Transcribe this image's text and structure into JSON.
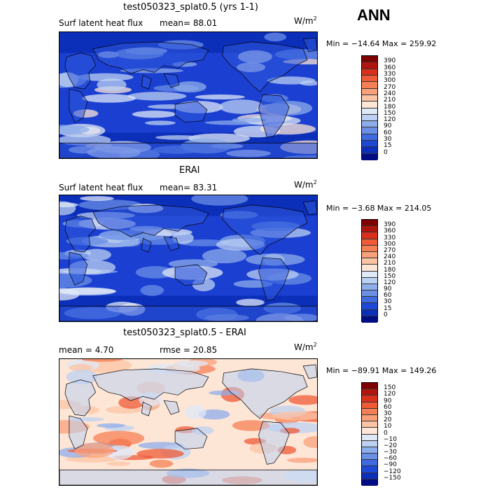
{
  "season": "ANN",
  "panels": [
    {
      "id": "model",
      "title": "test050323_splat0.5 (yrs 1-1)",
      "left_label": "Surf latent heat flux",
      "stat1": "mean=  88.01",
      "stat2": "",
      "units": "W/m",
      "units_sup": "2",
      "minmax": "Min = −14.64 Max = 259.92",
      "levels": [
        "390",
        "360",
        "330",
        "300",
        "270",
        "240",
        "210",
        "180",
        "150",
        "120",
        "90",
        "60",
        "30",
        "15",
        "0"
      ],
      "colors": [
        "#7f0000",
        "#b0150d",
        "#d9301e",
        "#ef5a37",
        "#f58055",
        "#f9a07b",
        "#fcc4a5",
        "#fde6d6",
        "#dfe8f7",
        "#bcd0f1",
        "#8daeea",
        "#6a8fe5",
        "#3f6ae0",
        "#1e48d6",
        "#0c2fba",
        "#000c82"
      ],
      "background": "#1b3fd0",
      "land": "#2e58da"
    },
    {
      "id": "obs",
      "title": "ERAI",
      "left_label": "Surf latent heat flux",
      "stat1": "mean=  83.31",
      "stat2": "",
      "units": "W/m",
      "units_sup": "2",
      "minmax": "Min =  −3.68 Max = 214.05",
      "levels": [
        "390",
        "360",
        "330",
        "300",
        "270",
        "240",
        "210",
        "180",
        "150",
        "120",
        "90",
        "60",
        "30",
        "15",
        "0"
      ],
      "colors": [
        "#7f0000",
        "#b0150d",
        "#d9301e",
        "#ef5a37",
        "#f58055",
        "#f9a07b",
        "#fcc4a5",
        "#fde6d6",
        "#dfe8f7",
        "#bcd0f1",
        "#8daeea",
        "#6a8fe5",
        "#3f6ae0",
        "#1e48d6",
        "#0c2fba",
        "#000c82"
      ],
      "background": "#1b3fd0",
      "land": "#2e58da"
    },
    {
      "id": "diff",
      "title": "test050323_splat0.5 - ERAI",
      "left_label": "mean =   4.70",
      "stat1": "",
      "stat2": "rmse =  20.85",
      "units": "W/m",
      "units_sup": "2",
      "minmax": "Min = −89.91 Max = 149.26",
      "levels": [
        "150",
        "120",
        "90",
        "60",
        "30",
        "20",
        "10",
        "0",
        "−10",
        "−20",
        "−30",
        "−60",
        "−90",
        "−120",
        "−150"
      ],
      "colors": [
        "#7f0000",
        "#b0150d",
        "#d9301e",
        "#ef5a37",
        "#f58055",
        "#f9a07b",
        "#fcc4a5",
        "#fde6d6",
        "#dfe8f7",
        "#bcd0f1",
        "#8daeea",
        "#6a8fe5",
        "#3f6ae0",
        "#1e48d6",
        "#0c2fba",
        "#000c82"
      ],
      "background": "#fde6d6",
      "land": "#bcd0f1"
    }
  ]
}
